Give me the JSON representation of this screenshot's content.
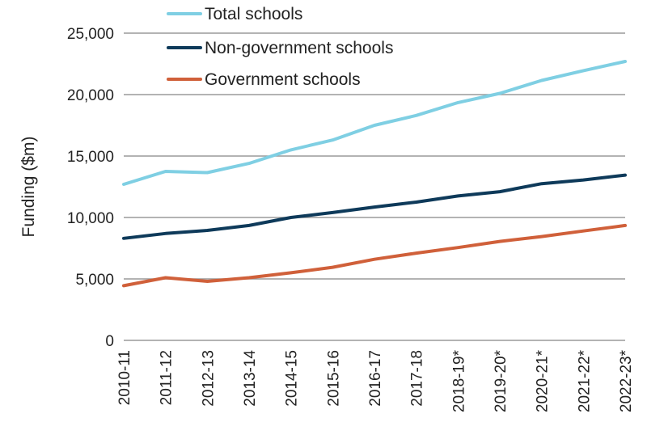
{
  "chart_data": {
    "type": "line",
    "title": "",
    "xlabel": "",
    "ylabel": "Funding  ($m)",
    "ylim": [
      0,
      25000
    ],
    "yticks": [
      0,
      5000,
      10000,
      15000,
      20000,
      25000
    ],
    "ytick_labels": [
      "0",
      "5,000",
      "10,000",
      "15,000",
      "20,000",
      "25,000"
    ],
    "grid": true,
    "legend_position": "top-left",
    "categories": [
      "2010-11",
      "2011-12",
      "2012-13",
      "2013-14",
      "2014-15",
      "2015-16",
      "2016-17",
      "2017-18",
      "2018-19*",
      "2019-20*",
      "2020-21*",
      "2021-22*",
      "2022-23*"
    ],
    "series": [
      {
        "name": "Total schools",
        "color": "#7fcfe3",
        "values": [
          12700,
          13750,
          13650,
          14400,
          15500,
          16300,
          17500,
          18300,
          19350,
          20100,
          21150,
          21950,
          22700
        ]
      },
      {
        "name": "Non-government schools",
        "color": "#0e3a5a",
        "values": [
          8300,
          8700,
          8950,
          9350,
          10000,
          10400,
          10850,
          11250,
          11750,
          12100,
          12750,
          13050,
          13450
        ]
      },
      {
        "name": "Government schools",
        "color": "#d0603a",
        "values": [
          4450,
          5100,
          4800,
          5100,
          5500,
          5950,
          6600,
          7100,
          7550,
          8050,
          8450,
          8900,
          9350
        ]
      }
    ]
  }
}
